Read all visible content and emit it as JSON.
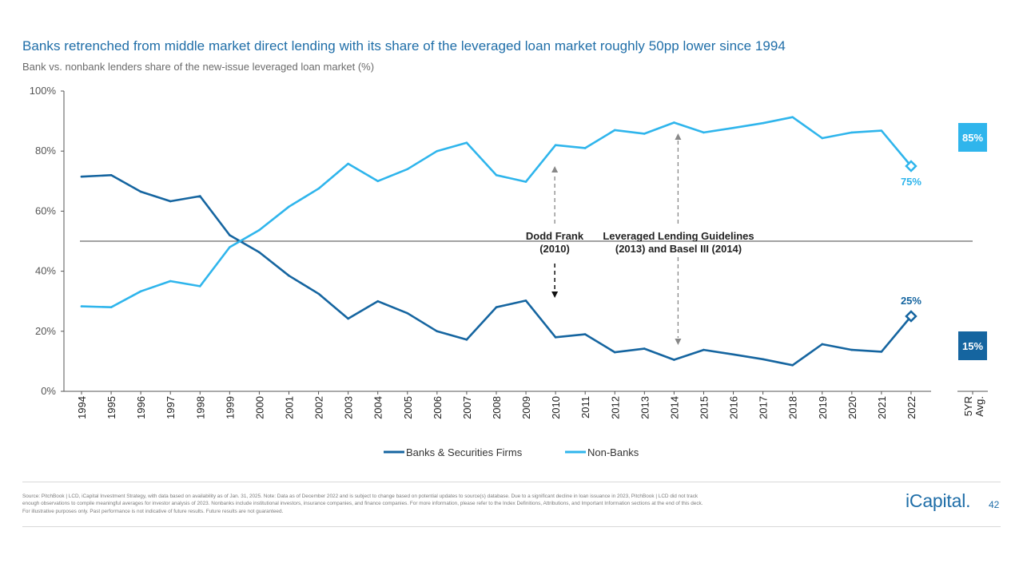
{
  "header": {
    "title": "Banks retrenched from middle market direct lending with its share of the leveraged loan market roughly 50pp lower since 1994",
    "subtitle": "Bank vs. nonbank lenders share of the new-issue leveraged loan market (%)"
  },
  "chart_data": {
    "type": "line",
    "title": "Banks retrenched from middle market direct lending with its share of the leveraged loan market roughly 50pp lower since 1994",
    "subtitle": "Bank vs. nonbank lenders share of the new-issue leveraged loan market (%)",
    "ylim": [
      0,
      100
    ],
    "yticks": [
      0,
      20,
      40,
      60,
      80,
      100
    ],
    "ytick_labels": [
      "0%",
      "20%",
      "40%",
      "60%",
      "80%",
      "100%"
    ],
    "reference_line": 50,
    "categories": [
      "1994",
      "1995",
      "1996",
      "1997",
      "1998",
      "1999",
      "2000",
      "2001",
      "2002",
      "2003",
      "2004",
      "2005",
      "2006",
      "2007",
      "2008",
      "2009",
      "2010",
      "2011",
      "2012",
      "2013",
      "2014",
      "2015",
      "2016",
      "2017",
      "2018",
      "2019",
      "2020",
      "2021",
      "2022"
    ],
    "series": [
      {
        "name": "Banks & Securities Firms",
        "color": "#1565a0",
        "values": [
          71.5,
          72,
          66.5,
          63.3,
          65,
          52,
          46.3,
          38.5,
          32.5,
          24.2,
          30,
          26,
          20,
          17.2,
          28,
          30.2,
          18,
          19,
          13,
          14.2,
          10.5,
          13.8,
          12.3,
          10.7,
          8.7,
          15.7,
          13.8,
          13.2,
          25
        ],
        "end_label": "25%",
        "avg_label": "15%"
      },
      {
        "name": "Non-Banks",
        "color": "#2fb5ec",
        "values": [
          28.3,
          28,
          33.3,
          36.7,
          35,
          48,
          53.7,
          61.5,
          67.5,
          75.8,
          70,
          74,
          80,
          82.8,
          72,
          69.8,
          82,
          81,
          87,
          85.8,
          89.5,
          86.2,
          87.7,
          89.3,
          91.3,
          84.3,
          86.2,
          86.8,
          75
        ],
        "end_label": "75%",
        "avg_label": "85%"
      }
    ],
    "avg_category_label": [
      "5YR",
      "Avg."
    ],
    "annotations": [
      {
        "lines": [
          "Dodd Frank",
          "(2010)"
        ],
        "year": "2010"
      },
      {
        "lines": [
          "Leveraged Lending Guidelines",
          "(2013) and Basel III (2014)"
        ],
        "year": "2014"
      }
    ],
    "legend": [
      "Banks & Securities Firms",
      "Non-Banks"
    ],
    "legend_position": "bottom-center"
  },
  "footer": {
    "source_lines": [
      "Source: PitchBook | LCD, iCapital Investment Strategy, with data based on availability as of Jan. 31, 2025. Note: Data as of December 2022 and is subject to change based on potential updates to source(s) database. Due to a significant decline in loan issuance in 2023, PitchBook | LCD did not track",
      "enough observations to compile meaningful averages for investor analysis of 2023. Nonbanks include institutional investors, insurance companies, and finance companies. For more information, please refer to the Index Definitions, Attributions, and Important Information sections at the end of this deck.",
      "For illustrative purposes only. Past performance is not indicative of future results. Future results are not guaranteed."
    ],
    "logo": "iCapital",
    "logo_mark": ".",
    "page_number": "42"
  }
}
